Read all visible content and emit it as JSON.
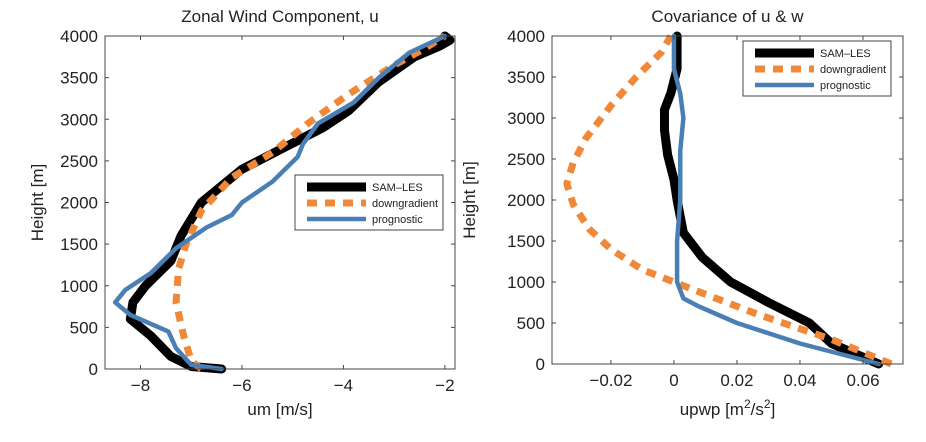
{
  "chart_data": [
    {
      "type": "line",
      "title": "Zonal Wind Component, u",
      "xlabel": "um [m/s]",
      "ylabel": "Height [m]",
      "xlim": [
        -8.7,
        -1.8
      ],
      "ylim": [
        0,
        4000
      ],
      "xticks": [
        -8,
        -6,
        -4,
        -2
      ],
      "xtick_labels": [
        "−8",
        "−6",
        "−4",
        "−2"
      ],
      "yticks": [
        0,
        500,
        1000,
        1500,
        2000,
        2500,
        3000,
        3500,
        4000
      ],
      "ytick_labels": [
        "0",
        "500",
        "1000",
        "1500",
        "2000",
        "2500",
        "3000",
        "3500",
        "4000"
      ],
      "legend": "center-right",
      "grid": false,
      "series": [
        {
          "name": "SAM–LES",
          "color": "#000000",
          "style": "solid-thick",
          "points": [
            [
              -6.4,
              0
            ],
            [
              -7,
              30
            ],
            [
              -7.4,
              150
            ],
            [
              -7.8,
              400
            ],
            [
              -8.2,
              600
            ],
            [
              -8.15,
              800
            ],
            [
              -7.9,
              1000
            ],
            [
              -7.4,
              1300
            ],
            [
              -7.2,
              1600
            ],
            [
              -6.8,
              2000
            ],
            [
              -6,
              2400
            ],
            [
              -5.2,
              2650
            ],
            [
              -4.4,
              2900
            ],
            [
              -3.9,
              3100
            ],
            [
              -3.3,
              3450
            ],
            [
              -2.6,
              3750
            ],
            [
              -2.1,
              3880
            ],
            [
              -1.9,
              3950
            ],
            [
              -2,
              4000
            ]
          ]
        },
        {
          "name": "downgradient",
          "color": "#f0883a",
          "style": "dashed",
          "points": [
            [
              -6.8,
              0
            ],
            [
              -7,
              100
            ],
            [
              -7.15,
              400
            ],
            [
              -7.3,
              800
            ],
            [
              -7.25,
              1200
            ],
            [
              -7.1,
              1500
            ],
            [
              -6.8,
              1900
            ],
            [
              -6.2,
              2300
            ],
            [
              -5.4,
              2600
            ],
            [
              -4.7,
              2950
            ],
            [
              -3.9,
              3300
            ],
            [
              -3,
              3650
            ],
            [
              -2.4,
              3850
            ],
            [
              -2,
              4000
            ]
          ]
        },
        {
          "name": "prognostic",
          "color": "#4a7fb5",
          "style": "solid",
          "points": [
            [
              -6.4,
              0
            ],
            [
              -7,
              50
            ],
            [
              -7.3,
              250
            ],
            [
              -7.45,
              450
            ],
            [
              -8.2,
              650
            ],
            [
              -8.5,
              800
            ],
            [
              -8.3,
              950
            ],
            [
              -7.8,
              1150
            ],
            [
              -7.3,
              1450
            ],
            [
              -6.7,
              1700
            ],
            [
              -6.2,
              1850
            ],
            [
              -6,
              2000
            ],
            [
              -5.4,
              2250
            ],
            [
              -4.9,
              2550
            ],
            [
              -4.8,
              2700
            ],
            [
              -4.5,
              2950
            ],
            [
              -3.8,
              3200
            ],
            [
              -3.3,
              3500
            ],
            [
              -2.7,
              3800
            ],
            [
              -2,
              4000
            ]
          ]
        }
      ]
    },
    {
      "type": "line",
      "title": "Covariance of u & w",
      "xlabel": "upwp [m",
      "xlabel_sup1": "2",
      "xlabel_mid": "/s",
      "xlabel_sup2": "2",
      "xlabel_end": "]",
      "ylabel": "Height [m]",
      "xlim": [
        -0.0387,
        0.0727
      ],
      "ylim": [
        0,
        4000
      ],
      "xticks": [
        -0.02,
        0,
        0.02,
        0.04,
        0.06
      ],
      "xtick_labels": [
        "−0.02",
        "0",
        "0.02",
        "0.04",
        "0.06"
      ],
      "yticks": [
        0,
        500,
        1000,
        1500,
        2000,
        2500,
        3000,
        3500,
        4000
      ],
      "ytick_labels": [
        "0",
        "500",
        "1000",
        "1500",
        "2000",
        "2500",
        "3000",
        "3500",
        "4000"
      ],
      "legend": "top-right",
      "grid": false,
      "series": [
        {
          "name": "SAM–LES",
          "color": "#000000",
          "style": "solid-thick",
          "points": [
            [
              0.065,
              0
            ],
            [
              0.05,
              250
            ],
            [
              0.043,
              500
            ],
            [
              0.03,
              750
            ],
            [
              0.018,
              1000
            ],
            [
              0.009,
              1300
            ],
            [
              0.003,
              1600
            ],
            [
              0.001,
              2000
            ],
            [
              0,
              2250
            ],
            [
              -0.002,
              2550
            ],
            [
              -0.003,
              2850
            ],
            [
              -0.003,
              3100
            ],
            [
              -0.001,
              3300
            ],
            [
              0.001,
              3600
            ],
            [
              0.001,
              4000
            ]
          ]
        },
        {
          "name": "downgradient",
          "color": "#f0883a",
          "style": "dashed",
          "points": [
            [
              0.069,
              0
            ],
            [
              0.05,
              300
            ],
            [
              0.027,
              600
            ],
            [
              0.01,
              850
            ],
            [
              0,
              1000
            ],
            [
              -0.01,
              1150
            ],
            [
              -0.02,
              1400
            ],
            [
              -0.027,
              1650
            ],
            [
              -0.032,
              1950
            ],
            [
              -0.034,
              2200
            ],
            [
              -0.032,
              2450
            ],
            [
              -0.028,
              2750
            ],
            [
              -0.02,
              3150
            ],
            [
              -0.012,
              3500
            ],
            [
              -0.004,
              3800
            ],
            [
              -0.001,
              4000
            ]
          ]
        },
        {
          "name": "prognostic",
          "color": "#4a7fb5",
          "style": "solid",
          "points": [
            [
              0.065,
              0
            ],
            [
              0.04,
              250
            ],
            [
              0.02,
              500
            ],
            [
              0.008,
              700
            ],
            [
              0.003,
              800
            ],
            [
              0.001,
              1000
            ],
            [
              0.001,
              1500
            ],
            [
              0.002,
              2000
            ],
            [
              0.002,
              2300
            ],
            [
              0.002,
              2600
            ],
            [
              0.003,
              3000
            ],
            [
              0.002,
              3300
            ],
            [
              0,
              3600
            ],
            [
              0,
              4000
            ]
          ]
        }
      ]
    }
  ]
}
